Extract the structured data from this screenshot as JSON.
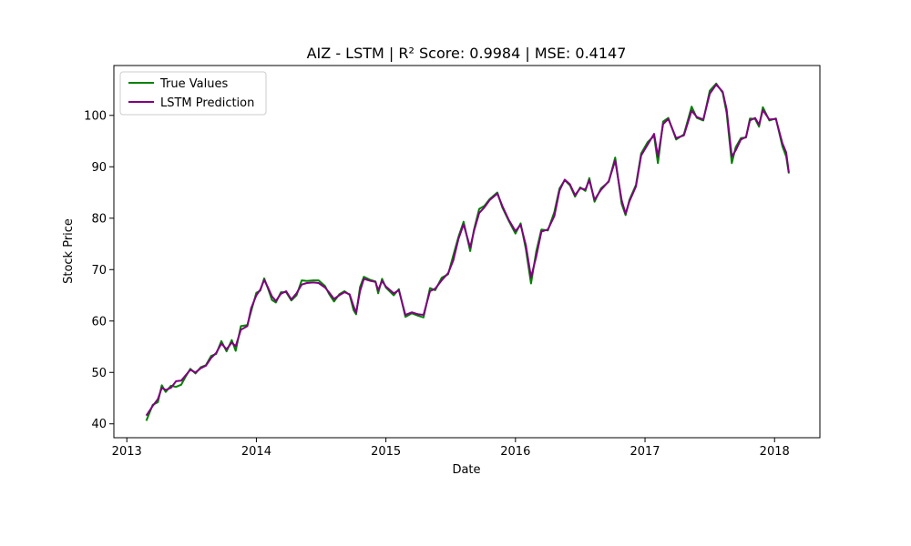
{
  "chart_data": {
    "type": "line",
    "title": "AIZ - LSTM | R² Score: 0.9984 | MSE: 0.4147",
    "xlabel": "Date",
    "ylabel": "Stock Price",
    "x_ticks": [
      "2013",
      "2014",
      "2015",
      "2016",
      "2017",
      "2018"
    ],
    "y_ticks": [
      40,
      50,
      60,
      70,
      80,
      90,
      100
    ],
    "xlim": [
      2012.9,
      2018.35
    ],
    "ylim": [
      37.3,
      109.7
    ],
    "grid": false,
    "legend_position": "top-left",
    "series": [
      {
        "name": "True Values",
        "color": "#008000",
        "points": [
          [
            2013.15,
            40.6
          ],
          [
            2013.2,
            43.7
          ],
          [
            2013.24,
            44.2
          ],
          [
            2013.27,
            47.5
          ],
          [
            2013.3,
            46.2
          ],
          [
            2013.34,
            47.4
          ],
          [
            2013.38,
            47.2
          ],
          [
            2013.42,
            47.6
          ],
          [
            2013.45,
            49.0
          ],
          [
            2013.49,
            50.7
          ],
          [
            2013.53,
            49.8
          ],
          [
            2013.57,
            51.0
          ],
          [
            2013.61,
            51.4
          ],
          [
            2013.65,
            53.2
          ],
          [
            2013.69,
            53.6
          ],
          [
            2013.73,
            56.1
          ],
          [
            2013.77,
            54.1
          ],
          [
            2013.81,
            56.3
          ],
          [
            2013.84,
            54.2
          ],
          [
            2013.88,
            59.0
          ],
          [
            2013.93,
            59.2
          ],
          [
            2013.96,
            61.9
          ],
          [
            2014.0,
            65.5
          ],
          [
            2014.03,
            65.9
          ],
          [
            2014.06,
            68.3
          ],
          [
            2014.09,
            66.3
          ],
          [
            2014.12,
            64.1
          ],
          [
            2014.15,
            63.6
          ],
          [
            2014.19,
            65.6
          ],
          [
            2014.23,
            65.6
          ],
          [
            2014.27,
            64.0
          ],
          [
            2014.31,
            65.0
          ],
          [
            2014.35,
            67.9
          ],
          [
            2014.39,
            67.8
          ],
          [
            2014.44,
            67.9
          ],
          [
            2014.48,
            67.9
          ],
          [
            2014.53,
            66.8
          ],
          [
            2014.56,
            65.3
          ],
          [
            2014.6,
            63.8
          ],
          [
            2014.64,
            65.2
          ],
          [
            2014.68,
            65.8
          ],
          [
            2014.72,
            65.1
          ],
          [
            2014.75,
            62.1
          ],
          [
            2014.77,
            61.3
          ],
          [
            2014.8,
            66.6
          ],
          [
            2014.83,
            68.6
          ],
          [
            2014.88,
            68.0
          ],
          [
            2014.92,
            67.7
          ],
          [
            2014.94,
            65.4
          ],
          [
            2014.97,
            68.2
          ],
          [
            2015.0,
            66.5
          ],
          [
            2015.06,
            65.0
          ],
          [
            2015.1,
            66.2
          ],
          [
            2015.15,
            60.8
          ],
          [
            2015.2,
            61.5
          ],
          [
            2015.25,
            61.0
          ],
          [
            2015.29,
            60.7
          ],
          [
            2015.34,
            66.4
          ],
          [
            2015.38,
            66.0
          ],
          [
            2015.43,
            68.4
          ],
          [
            2015.48,
            69.1
          ],
          [
            2015.52,
            72.8
          ],
          [
            2015.56,
            76.4
          ],
          [
            2015.6,
            79.3
          ],
          [
            2015.65,
            73.6
          ],
          [
            2015.68,
            77.8
          ],
          [
            2015.72,
            81.8
          ],
          [
            2015.76,
            82.4
          ],
          [
            2015.8,
            83.7
          ],
          [
            2015.86,
            85.0
          ],
          [
            2015.9,
            82.0
          ],
          [
            2015.95,
            79.4
          ],
          [
            2016.0,
            77.0
          ],
          [
            2016.04,
            79.0
          ],
          [
            2016.08,
            74.0
          ],
          [
            2016.12,
            67.3
          ],
          [
            2016.16,
            73.5
          ],
          [
            2016.2,
            77.8
          ],
          [
            2016.25,
            77.6
          ],
          [
            2016.3,
            81.2
          ],
          [
            2016.34,
            85.8
          ],
          [
            2016.38,
            87.4
          ],
          [
            2016.42,
            86.4
          ],
          [
            2016.46,
            84.2
          ],
          [
            2016.5,
            86.0
          ],
          [
            2016.54,
            85.3
          ],
          [
            2016.57,
            87.8
          ],
          [
            2016.61,
            83.2
          ],
          [
            2016.66,
            85.8
          ],
          [
            2016.72,
            87.1
          ],
          [
            2016.77,
            91.8
          ],
          [
            2016.82,
            82.8
          ],
          [
            2016.85,
            80.6
          ],
          [
            2016.88,
            83.6
          ],
          [
            2016.93,
            86.5
          ],
          [
            2016.97,
            92.6
          ],
          [
            2017.02,
            94.8
          ],
          [
            2017.07,
            96.0
          ],
          [
            2017.1,
            90.7
          ],
          [
            2017.14,
            98.8
          ],
          [
            2017.18,
            99.5
          ],
          [
            2017.24,
            95.3
          ],
          [
            2017.3,
            96.3
          ],
          [
            2017.36,
            101.7
          ],
          [
            2017.4,
            99.5
          ],
          [
            2017.45,
            99.0
          ],
          [
            2017.5,
            104.8
          ],
          [
            2017.55,
            106.2
          ],
          [
            2017.6,
            104.4
          ],
          [
            2017.63,
            100.5
          ],
          [
            2017.67,
            90.7
          ],
          [
            2017.7,
            93.8
          ],
          [
            2017.74,
            95.6
          ],
          [
            2017.78,
            95.7
          ],
          [
            2017.81,
            99.4
          ],
          [
            2017.85,
            99.3
          ],
          [
            2017.88,
            97.8
          ],
          [
            2017.91,
            101.6
          ],
          [
            2017.96,
            99.0
          ],
          [
            2018.01,
            99.4
          ],
          [
            2018.06,
            94.0
          ],
          [
            2018.09,
            92.0
          ],
          [
            2018.11,
            88.7
          ]
        ]
      },
      {
        "name": "LSTM Prediction",
        "color": "#800080",
        "points": [
          [
            2013.15,
            41.6
          ],
          [
            2013.2,
            43.5
          ],
          [
            2013.24,
            44.8
          ],
          [
            2013.27,
            47.0
          ],
          [
            2013.3,
            46.6
          ],
          [
            2013.34,
            47.0
          ],
          [
            2013.38,
            48.3
          ],
          [
            2013.42,
            48.4
          ],
          [
            2013.45,
            49.3
          ],
          [
            2013.49,
            50.5
          ],
          [
            2013.53,
            50.0
          ],
          [
            2013.57,
            50.8
          ],
          [
            2013.61,
            51.3
          ],
          [
            2013.65,
            52.8
          ],
          [
            2013.69,
            53.8
          ],
          [
            2013.73,
            55.6
          ],
          [
            2013.77,
            54.5
          ],
          [
            2013.81,
            55.8
          ],
          [
            2013.84,
            55.1
          ],
          [
            2013.88,
            58.3
          ],
          [
            2013.93,
            59.0
          ],
          [
            2013.96,
            62.5
          ],
          [
            2014.0,
            65.0
          ],
          [
            2014.03,
            66.1
          ],
          [
            2014.06,
            68.0
          ],
          [
            2014.09,
            66.5
          ],
          [
            2014.12,
            64.8
          ],
          [
            2014.15,
            63.9
          ],
          [
            2014.19,
            65.3
          ],
          [
            2014.23,
            65.8
          ],
          [
            2014.27,
            64.2
          ],
          [
            2014.31,
            65.4
          ],
          [
            2014.35,
            67.1
          ],
          [
            2014.39,
            67.4
          ],
          [
            2014.44,
            67.5
          ],
          [
            2014.48,
            67.4
          ],
          [
            2014.53,
            66.5
          ],
          [
            2014.56,
            65.6
          ],
          [
            2014.6,
            64.3
          ],
          [
            2014.64,
            65.0
          ],
          [
            2014.68,
            65.6
          ],
          [
            2014.72,
            65.2
          ],
          [
            2014.75,
            62.9
          ],
          [
            2014.77,
            61.6
          ],
          [
            2014.8,
            65.8
          ],
          [
            2014.83,
            68.2
          ],
          [
            2014.88,
            67.8
          ],
          [
            2014.92,
            67.6
          ],
          [
            2014.94,
            66.0
          ],
          [
            2014.97,
            67.8
          ],
          [
            2015.0,
            66.7
          ],
          [
            2015.06,
            65.4
          ],
          [
            2015.1,
            66.0
          ],
          [
            2015.15,
            61.2
          ],
          [
            2015.2,
            61.7
          ],
          [
            2015.25,
            61.3
          ],
          [
            2015.29,
            61.2
          ],
          [
            2015.34,
            65.8
          ],
          [
            2015.38,
            66.3
          ],
          [
            2015.43,
            67.9
          ],
          [
            2015.48,
            69.3
          ],
          [
            2015.52,
            71.8
          ],
          [
            2015.56,
            76.0
          ],
          [
            2015.6,
            78.8
          ],
          [
            2015.65,
            74.3
          ],
          [
            2015.68,
            77.5
          ],
          [
            2015.72,
            81.0
          ],
          [
            2015.76,
            82.1
          ],
          [
            2015.8,
            83.5
          ],
          [
            2015.86,
            84.8
          ],
          [
            2015.9,
            82.3
          ],
          [
            2015.95,
            79.6
          ],
          [
            2016.0,
            77.5
          ],
          [
            2016.04,
            78.7
          ],
          [
            2016.08,
            74.8
          ],
          [
            2016.12,
            68.5
          ],
          [
            2016.16,
            72.5
          ],
          [
            2016.2,
            77.4
          ],
          [
            2016.25,
            77.8
          ],
          [
            2016.3,
            80.4
          ],
          [
            2016.34,
            85.4
          ],
          [
            2016.38,
            87.5
          ],
          [
            2016.42,
            86.6
          ],
          [
            2016.46,
            84.5
          ],
          [
            2016.5,
            85.8
          ],
          [
            2016.54,
            85.6
          ],
          [
            2016.57,
            87.4
          ],
          [
            2016.61,
            83.6
          ],
          [
            2016.66,
            85.5
          ],
          [
            2016.72,
            87.2
          ],
          [
            2016.77,
            91.2
          ],
          [
            2016.82,
            83.5
          ],
          [
            2016.85,
            80.9
          ],
          [
            2016.88,
            83.3
          ],
          [
            2016.93,
            86.2
          ],
          [
            2016.97,
            92.2
          ],
          [
            2017.02,
            94.3
          ],
          [
            2017.07,
            96.4
          ],
          [
            2017.1,
            92.0
          ],
          [
            2017.14,
            98.3
          ],
          [
            2017.18,
            99.3
          ],
          [
            2017.24,
            95.6
          ],
          [
            2017.3,
            96.1
          ],
          [
            2017.36,
            100.9
          ],
          [
            2017.4,
            99.7
          ],
          [
            2017.45,
            99.2
          ],
          [
            2017.5,
            104.2
          ],
          [
            2017.55,
            106.0
          ],
          [
            2017.6,
            104.6
          ],
          [
            2017.63,
            101.2
          ],
          [
            2017.67,
            92.0
          ],
          [
            2017.7,
            93.2
          ],
          [
            2017.74,
            95.3
          ],
          [
            2017.78,
            95.8
          ],
          [
            2017.81,
            99.0
          ],
          [
            2017.85,
            99.5
          ],
          [
            2017.88,
            98.2
          ],
          [
            2017.91,
            101.0
          ],
          [
            2017.96,
            99.2
          ],
          [
            2018.01,
            99.3
          ],
          [
            2018.06,
            94.6
          ],
          [
            2018.09,
            92.8
          ],
          [
            2018.11,
            88.9
          ]
        ]
      }
    ]
  }
}
